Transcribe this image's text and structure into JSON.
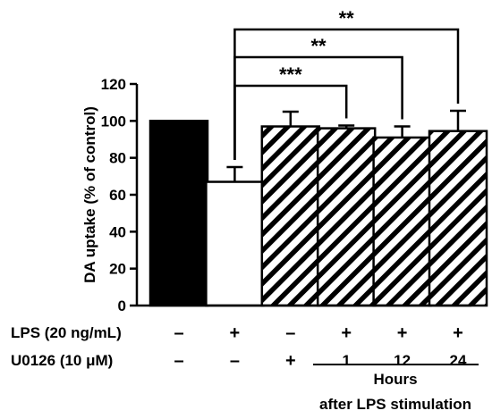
{
  "chart_data": {
    "type": "bar",
    "ylabel": "DA uptake (% of control)",
    "ylim": [
      0,
      120
    ],
    "yticks": [
      0,
      20,
      40,
      60,
      80,
      100,
      120
    ],
    "grid": false,
    "bars": [
      {
        "value": 100,
        "error": 0,
        "fill": "solid-black"
      },
      {
        "value": 67,
        "error": 8,
        "fill": "white"
      },
      {
        "value": 97,
        "error": 8,
        "fill": "hatched"
      },
      {
        "value": 96,
        "error": 1.5,
        "fill": "hatched"
      },
      {
        "value": 91,
        "error": 6,
        "fill": "hatched"
      },
      {
        "value": 94.5,
        "error": 11,
        "fill": "hatched"
      }
    ],
    "conditions": [
      {
        "label": "LPS (20 ng/mL)",
        "values": [
          "–",
          "+",
          "–",
          "+",
          "+",
          "+"
        ]
      },
      {
        "label": "U0126 (10 μM)",
        "values": [
          "–",
          "–",
          "+",
          "1",
          "12",
          "24"
        ]
      }
    ],
    "group_label": {
      "line1": "Hours",
      "line2": "after LPS stimulation",
      "spans": [
        3,
        5
      ]
    },
    "significance": [
      {
        "from": 1,
        "to": 3,
        "label": "***"
      },
      {
        "from": 1,
        "to": 4,
        "label": "**"
      },
      {
        "from": 1,
        "to": 5,
        "label": "**"
      }
    ]
  },
  "colors": {
    "ink": "#000000",
    "background": "#ffffff"
  }
}
